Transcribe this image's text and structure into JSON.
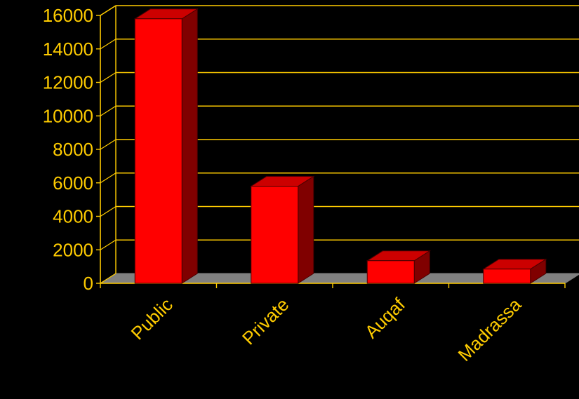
{
  "chart_data": {
    "type": "bar",
    "style": "3d-column",
    "categories": [
      "Public",
      "Private",
      "Auqaf",
      "Madrassa"
    ],
    "values": [
      15800,
      5800,
      1350,
      850
    ],
    "ylim": [
      0,
      16000
    ],
    "yticks": [
      0,
      2000,
      4000,
      6000,
      8000,
      10000,
      12000,
      14000,
      16000
    ],
    "ytick_labels": [
      "0",
      "2000",
      "4000",
      "6000",
      "8000",
      "10000",
      "12000",
      "14000",
      "16000"
    ],
    "grid": true,
    "title": "",
    "xlabel": "",
    "ylabel": "",
    "colors": {
      "background": "#000000",
      "text": "#ffcc00",
      "grid": "#ffcc00",
      "bar_front": "#ff0000",
      "bar_top": "#cc0000",
      "bar_side": "#800000",
      "bar_outline": "#4a0000",
      "floor": "#808080"
    }
  }
}
